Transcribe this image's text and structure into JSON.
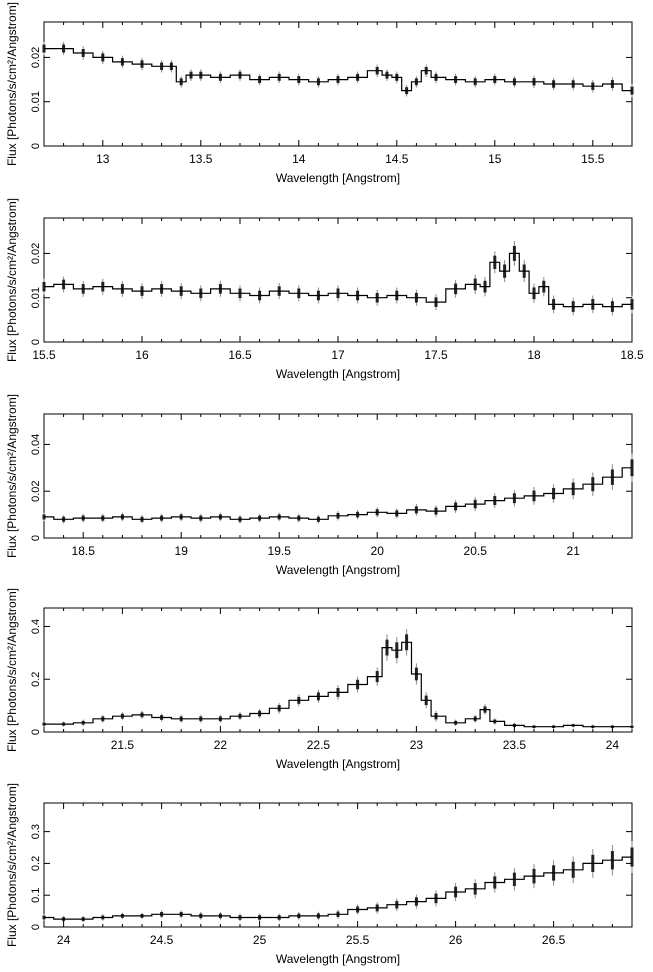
{
  "chart_data": [
    {
      "type": "line",
      "xlabel": "Wavelength [Angstrom]",
      "ylabel": "Flux [Photons/s/cm²/Angstrom]",
      "xlim": [
        12.7,
        15.7
      ],
      "ylim": [
        0,
        0.028
      ],
      "xticks": [
        13,
        13.5,
        14,
        14.5,
        15,
        15.5
      ],
      "xtick_labels": [
        "13",
        "13.5",
        "14",
        "14.5",
        "15",
        "15.5"
      ],
      "yticks": [
        0,
        0.01,
        0.02
      ],
      "ytick_labels": [
        "0",
        "0.01",
        "0.02"
      ],
      "series": [
        {
          "x": [
            12.7,
            12.8,
            12.9,
            13.0,
            13.1,
            13.2,
            13.3,
            13.35,
            13.4,
            13.45,
            13.5,
            13.6,
            13.7,
            13.8,
            13.9,
            14.0,
            14.1,
            14.2,
            14.3,
            14.4,
            14.45,
            14.5,
            14.55,
            14.6,
            14.65,
            14.7,
            14.8,
            14.9,
            15.0,
            15.1,
            15.2,
            15.3,
            15.4,
            15.5,
            15.6,
            15.7
          ],
          "y": [
            0.022,
            0.022,
            0.021,
            0.02,
            0.019,
            0.0185,
            0.018,
            0.018,
            0.0145,
            0.016,
            0.016,
            0.0155,
            0.016,
            0.015,
            0.0155,
            0.015,
            0.0145,
            0.015,
            0.0155,
            0.017,
            0.016,
            0.0155,
            0.0125,
            0.0145,
            0.017,
            0.0155,
            0.015,
            0.0145,
            0.015,
            0.0145,
            0.0145,
            0.014,
            0.014,
            0.0135,
            0.014,
            0.0125
          ],
          "err": [
            0.0015,
            0.0015,
            0.0015,
            0.0015,
            0.0014,
            0.0014,
            0.0014,
            0.0014,
            0.0013,
            0.0013,
            0.0013,
            0.0013,
            0.0013,
            0.0013,
            0.0013,
            0.0013,
            0.0013,
            0.0013,
            0.0013,
            0.0014,
            0.0013,
            0.0013,
            0.0013,
            0.0013,
            0.0014,
            0.0013,
            0.0013,
            0.0013,
            0.0013,
            0.0013,
            0.0014,
            0.0014,
            0.0014,
            0.0014,
            0.0015,
            0.0015
          ]
        }
      ]
    },
    {
      "type": "line",
      "xlabel": "Wavelength [Angstrom]",
      "ylabel": "Flux [Photons/s/cm²/Angstrom]",
      "xlim": [
        15.5,
        18.5
      ],
      "ylim": [
        0,
        0.028
      ],
      "xticks": [
        15.5,
        16,
        16.5,
        17,
        17.5,
        18,
        18.5
      ],
      "xtick_labels": [
        "15.5",
        "16",
        "16.5",
        "17",
        "17.5",
        "18",
        "18.5"
      ],
      "yticks": [
        0,
        0.01,
        0.02
      ],
      "ytick_labels": [
        "0",
        "0.01",
        "0.02"
      ],
      "series": [
        {
          "x": [
            15.5,
            15.6,
            15.7,
            15.8,
            15.9,
            16.0,
            16.1,
            16.2,
            16.3,
            16.4,
            16.5,
            16.6,
            16.7,
            16.8,
            16.9,
            17.0,
            17.1,
            17.2,
            17.3,
            17.4,
            17.5,
            17.6,
            17.7,
            17.75,
            17.8,
            17.85,
            17.9,
            17.95,
            18.0,
            18.05,
            18.1,
            18.2,
            18.3,
            18.4,
            18.5
          ],
          "y": [
            0.0125,
            0.013,
            0.012,
            0.0125,
            0.012,
            0.0115,
            0.012,
            0.0115,
            0.011,
            0.012,
            0.011,
            0.0105,
            0.0115,
            0.011,
            0.0105,
            0.011,
            0.0105,
            0.01,
            0.0105,
            0.01,
            0.009,
            0.012,
            0.013,
            0.0125,
            0.018,
            0.016,
            0.02,
            0.016,
            0.011,
            0.0125,
            0.0085,
            0.008,
            0.0085,
            0.008,
            0.0085
          ],
          "err": [
            0.0018,
            0.0018,
            0.0018,
            0.0018,
            0.0018,
            0.0018,
            0.0018,
            0.0018,
            0.0018,
            0.0018,
            0.0018,
            0.0018,
            0.0018,
            0.0018,
            0.0018,
            0.0018,
            0.0018,
            0.0018,
            0.0018,
            0.0018,
            0.0018,
            0.002,
            0.0022,
            0.0022,
            0.0025,
            0.0025,
            0.0028,
            0.0025,
            0.0022,
            0.0022,
            0.002,
            0.002,
            0.002,
            0.002,
            0.002
          ]
        }
      ]
    },
    {
      "type": "line",
      "xlabel": "Wavelength [Angstrom]",
      "ylabel": "Flux [Photons/s/cm²/Angstrom]",
      "xlim": [
        18.3,
        21.3
      ],
      "ylim": [
        0,
        0.053
      ],
      "xticks": [
        18.5,
        19,
        19.5,
        20,
        20.5,
        21
      ],
      "xtick_labels": [
        "18.5",
        "19",
        "19.5",
        "20",
        "20.5",
        "21"
      ],
      "yticks": [
        0,
        0.02,
        0.04
      ],
      "ytick_labels": [
        "0",
        "0.02",
        "0.04"
      ],
      "series": [
        {
          "x": [
            18.3,
            18.4,
            18.5,
            18.6,
            18.7,
            18.8,
            18.9,
            19.0,
            19.1,
            19.2,
            19.3,
            19.4,
            19.5,
            19.6,
            19.7,
            19.8,
            19.9,
            20.0,
            20.1,
            20.2,
            20.3,
            20.4,
            20.5,
            20.6,
            20.7,
            20.8,
            20.9,
            21.0,
            21.1,
            21.2,
            21.3
          ],
          "y": [
            0.009,
            0.008,
            0.0085,
            0.0085,
            0.009,
            0.008,
            0.0085,
            0.009,
            0.0085,
            0.009,
            0.008,
            0.0085,
            0.009,
            0.0085,
            0.008,
            0.0095,
            0.01,
            0.011,
            0.0105,
            0.012,
            0.0115,
            0.0135,
            0.0145,
            0.016,
            0.017,
            0.018,
            0.019,
            0.021,
            0.023,
            0.026,
            0.03
          ],
          "err": [
            0.0018,
            0.0018,
            0.0018,
            0.0018,
            0.0018,
            0.0018,
            0.0018,
            0.0018,
            0.0018,
            0.0018,
            0.0018,
            0.0018,
            0.0018,
            0.0018,
            0.0018,
            0.002,
            0.002,
            0.0022,
            0.0022,
            0.0025,
            0.0025,
            0.0028,
            0.003,
            0.0032,
            0.0035,
            0.0038,
            0.004,
            0.0045,
            0.005,
            0.0055,
            0.006
          ]
        }
      ]
    },
    {
      "type": "line",
      "xlabel": "Wavelength [Angstrom]",
      "ylabel": "Flux [Photons/s/cm²/Angstrom]",
      "xlim": [
        21.1,
        24.1
      ],
      "ylim": [
        0,
        0.47
      ],
      "xticks": [
        21.5,
        22,
        22.5,
        23,
        23.5,
        24
      ],
      "xtick_labels": [
        "21.5",
        "22",
        "22.5",
        "23",
        "23.5",
        "24"
      ],
      "yticks": [
        0,
        0.2,
        0.4
      ],
      "ytick_labels": [
        "0",
        "0.2",
        "0.4"
      ],
      "series": [
        {
          "x": [
            21.1,
            21.2,
            21.3,
            21.4,
            21.5,
            21.6,
            21.7,
            21.8,
            21.9,
            22.0,
            22.1,
            22.2,
            22.3,
            22.4,
            22.5,
            22.6,
            22.7,
            22.8,
            22.85,
            22.9,
            22.95,
            23.0,
            23.05,
            23.1,
            23.2,
            23.3,
            23.35,
            23.4,
            23.5,
            23.6,
            23.7,
            23.8,
            23.9,
            24.0,
            24.1
          ],
          "y": [
            0.03,
            0.03,
            0.035,
            0.05,
            0.06,
            0.065,
            0.055,
            0.05,
            0.05,
            0.05,
            0.06,
            0.07,
            0.09,
            0.12,
            0.135,
            0.15,
            0.18,
            0.21,
            0.32,
            0.31,
            0.34,
            0.22,
            0.12,
            0.06,
            0.035,
            0.05,
            0.085,
            0.04,
            0.025,
            0.02,
            0.02,
            0.025,
            0.02,
            0.02,
            0.02
          ],
          "err": [
            0.01,
            0.01,
            0.012,
            0.015,
            0.015,
            0.015,
            0.015,
            0.015,
            0.015,
            0.015,
            0.015,
            0.018,
            0.02,
            0.022,
            0.025,
            0.028,
            0.03,
            0.035,
            0.05,
            0.05,
            0.05,
            0.04,
            0.03,
            0.02,
            0.012,
            0.015,
            0.02,
            0.012,
            0.01,
            0.008,
            0.008,
            0.008,
            0.008,
            0.008,
            0.008
          ]
        }
      ]
    },
    {
      "type": "line",
      "xlabel": "Wavelength [Angstrom]",
      "ylabel": "Flux [Photons/s/cm²/Angstrom]",
      "xlim": [
        23.9,
        26.9
      ],
      "ylim": [
        0,
        0.39
      ],
      "xticks": [
        24,
        24.5,
        25,
        25.5,
        26,
        26.5
      ],
      "xtick_labels": [
        "24",
        "24.5",
        "25",
        "25.5",
        "26",
        "26.5"
      ],
      "yticks": [
        0,
        0.1,
        0.2,
        0.3
      ],
      "ytick_labels": [
        "0",
        "0.1",
        "0.2",
        "0.3"
      ],
      "series": [
        {
          "x": [
            23.9,
            24.0,
            24.1,
            24.2,
            24.3,
            24.4,
            24.5,
            24.6,
            24.7,
            24.8,
            24.9,
            25.0,
            25.1,
            25.2,
            25.3,
            25.4,
            25.5,
            25.6,
            25.7,
            25.8,
            25.9,
            26.0,
            26.1,
            26.2,
            26.3,
            26.4,
            26.5,
            26.6,
            26.7,
            26.8,
            26.9
          ],
          "y": [
            0.03,
            0.025,
            0.025,
            0.03,
            0.035,
            0.035,
            0.04,
            0.04,
            0.035,
            0.035,
            0.03,
            0.03,
            0.03,
            0.035,
            0.035,
            0.04,
            0.055,
            0.06,
            0.07,
            0.08,
            0.09,
            0.11,
            0.12,
            0.14,
            0.15,
            0.16,
            0.17,
            0.18,
            0.2,
            0.21,
            0.22
          ],
          "err": [
            0.01,
            0.01,
            0.01,
            0.01,
            0.01,
            0.01,
            0.012,
            0.012,
            0.012,
            0.012,
            0.012,
            0.012,
            0.012,
            0.012,
            0.013,
            0.014,
            0.016,
            0.018,
            0.02,
            0.022,
            0.025,
            0.028,
            0.03,
            0.032,
            0.035,
            0.038,
            0.04,
            0.042,
            0.045,
            0.048,
            0.05
          ]
        }
      ]
    }
  ]
}
